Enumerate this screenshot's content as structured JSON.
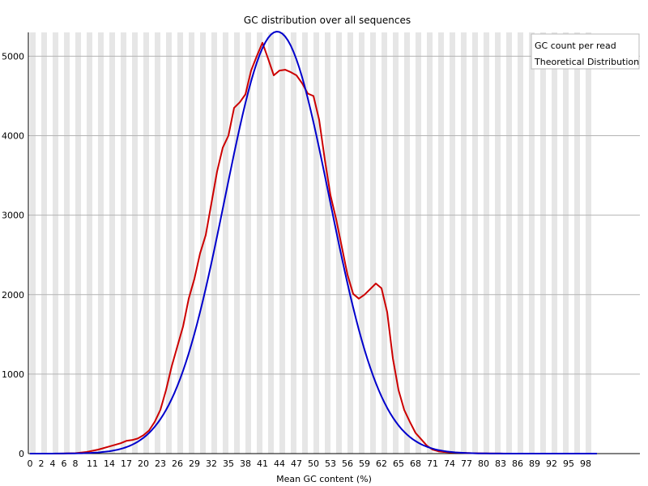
{
  "chart_data": {
    "type": "line",
    "title": "GC distribution over all sequences",
    "xlabel": "Mean GC content (%)",
    "ylabel": "",
    "xlim": [
      0,
      100
    ],
    "ylim": [
      0,
      5300
    ],
    "yticks": [
      0,
      1000,
      2000,
      3000,
      4000,
      5000
    ],
    "xtick_labels": [
      "0",
      "2",
      "4",
      "6",
      "8",
      "11",
      "14",
      "17",
      "20",
      "23",
      "26",
      "29",
      "32",
      "35",
      "38",
      "41",
      "44",
      "47",
      "50",
      "53",
      "56",
      "59",
      "62",
      "65",
      "68",
      "71",
      "74",
      "77",
      "80",
      "83",
      "86",
      "89",
      "92",
      "95",
      "98"
    ],
    "grid": true,
    "legend_position": "top-right",
    "series": [
      {
        "name": "GC count per read",
        "color": "#cc0000",
        "x": [
          0,
          5,
          8,
          10,
          12,
          14,
          16,
          17,
          18,
          19,
          20,
          21,
          22,
          23,
          24,
          25,
          26,
          27,
          28,
          29,
          30,
          31,
          32,
          33,
          34,
          35,
          36,
          37,
          38,
          39,
          40,
          41,
          42,
          43,
          44,
          45,
          46,
          47,
          48,
          49,
          50,
          51,
          52,
          53,
          54,
          55,
          56,
          57,
          58,
          59,
          60,
          61,
          62,
          63,
          64,
          65,
          66,
          67,
          68,
          69,
          70,
          71,
          72,
          73,
          74,
          76,
          78,
          80,
          85,
          90,
          100
        ],
        "y": [
          0,
          0,
          5,
          20,
          50,
          90,
          130,
          160,
          170,
          190,
          230,
          290,
          400,
          550,
          800,
          1100,
          1350,
          1600,
          1950,
          2200,
          2520,
          2750,
          3150,
          3550,
          3850,
          4000,
          4350,
          4420,
          4520,
          4820,
          5000,
          5170,
          4970,
          4760,
          4820,
          4830,
          4800,
          4760,
          4660,
          4530,
          4500,
          4200,
          3700,
          3250,
          2950,
          2600,
          2250,
          2010,
          1950,
          2000,
          2070,
          2140,
          2080,
          1780,
          1200,
          800,
          550,
          400,
          260,
          180,
          100,
          50,
          30,
          20,
          15,
          10,
          5,
          2,
          0,
          0,
          0
        ]
      },
      {
        "name": "Theoretical Distribution",
        "color": "#0000cc",
        "mean": 43.6,
        "sd": 9.2,
        "peak": 5310
      }
    ]
  }
}
